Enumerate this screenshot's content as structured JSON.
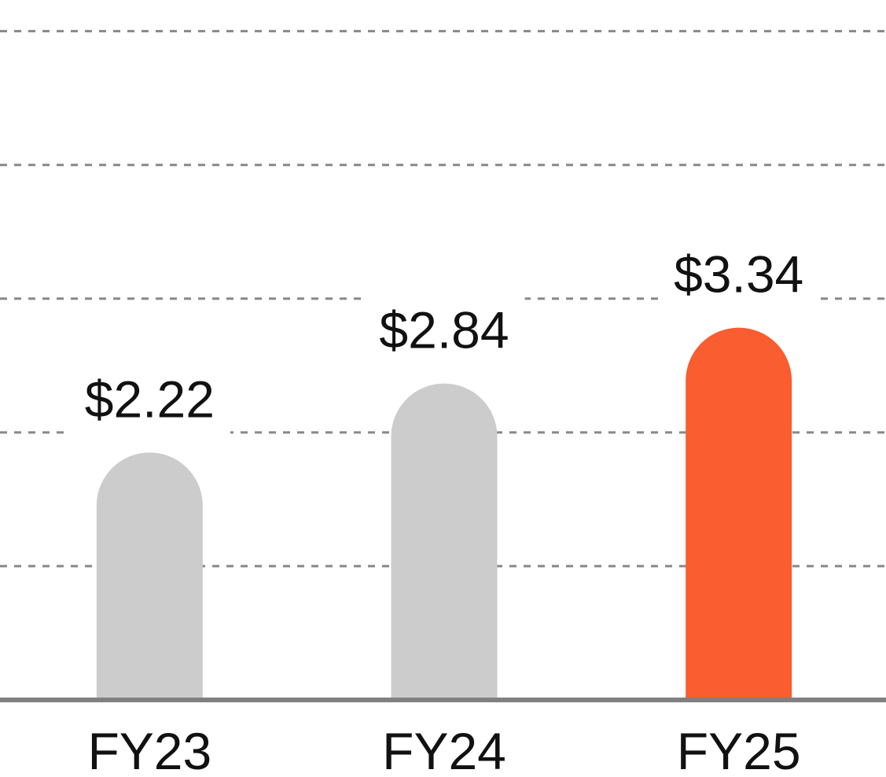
{
  "chart_data": {
    "type": "bar",
    "categories": [
      "FY23",
      "FY24",
      "FY25"
    ],
    "values": [
      2.22,
      2.84,
      3.34
    ],
    "value_labels": [
      "$2.22",
      "$2.84",
      "$3.34"
    ],
    "colors": [
      "#cccccc",
      "#cccccc",
      "#f95d30"
    ],
    "ylim": [
      0,
      6.28
    ],
    "yticks": [
      1.2,
      2.4,
      3.6,
      4.8,
      6
    ],
    "grid": true
  }
}
